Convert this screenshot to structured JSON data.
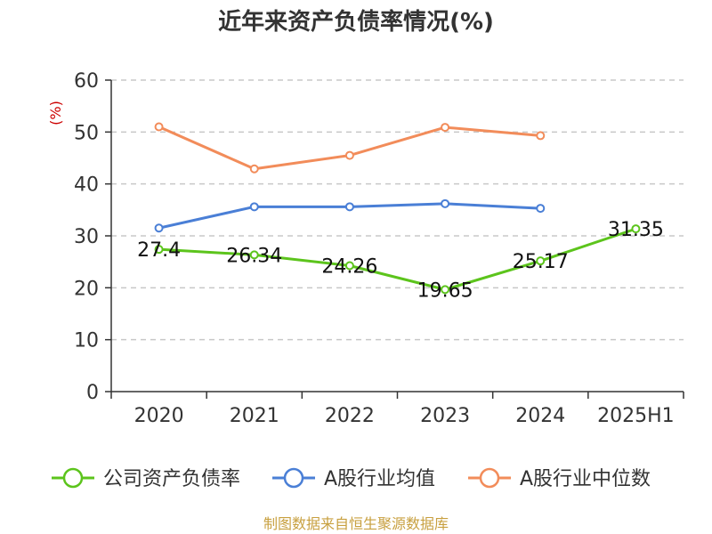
{
  "chart_data": {
    "type": "line",
    "title": "近年来资产负债率情况(%)",
    "ylabel": "(%)",
    "categories": [
      "2020",
      "2021",
      "2022",
      "2023",
      "2024",
      "2025H1"
    ],
    "ylim": [
      0,
      60
    ],
    "yticks": [
      0,
      10,
      20,
      30,
      40,
      50,
      60
    ],
    "grid": true,
    "legend_position": "bottom",
    "series": [
      {
        "name": "公司资产负债率",
        "color": "#5cc41c",
        "values": [
          27.4,
          26.34,
          24.26,
          19.65,
          25.17,
          31.35
        ],
        "labels": [
          "27.4",
          "26.34",
          "24.26",
          "19.65",
          "25.17",
          "31.35"
        ]
      },
      {
        "name": "A股行业均值",
        "color": "#4a7fd6",
        "values": [
          31.5,
          35.6,
          35.6,
          36.2,
          35.3,
          null
        ]
      },
      {
        "name": "A股行业中位数",
        "color": "#f28c5a",
        "values": [
          51.0,
          42.9,
          45.5,
          50.9,
          49.3,
          null
        ]
      }
    ],
    "source": "制图数据来自恒生聚源数据库"
  }
}
